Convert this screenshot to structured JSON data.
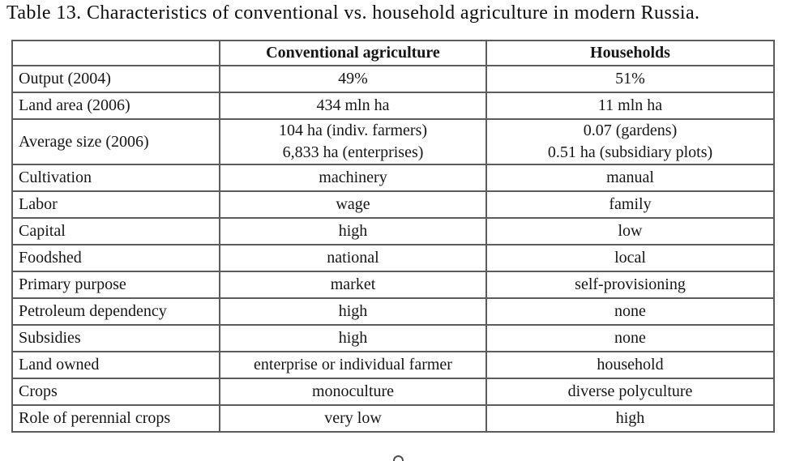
{
  "page": {
    "caption": "Table 13. Characteristics of conventional vs. household agriculture in modern Russia."
  },
  "table": {
    "columns": [
      "",
      "Conventional agriculture",
      "Households"
    ],
    "rows": [
      {
        "label": "Output (2004)",
        "conventional": [
          "49%"
        ],
        "households": [
          "51%"
        ]
      },
      {
        "label": "Land area (2006)",
        "conventional": [
          "434 mln ha"
        ],
        "households": [
          "11 mln ha"
        ]
      },
      {
        "label": "Average size (2006)",
        "conventional": [
          "104 ha (indiv. farmers)",
          "6,833 ha (enterprises)"
        ],
        "households": [
          "0.07 (gardens)",
          "0.51 ha (subsidiary plots)"
        ]
      },
      {
        "label": "Cultivation",
        "conventional": [
          "machinery"
        ],
        "households": [
          "manual"
        ]
      },
      {
        "label": "Labor",
        "conventional": [
          "wage"
        ],
        "households": [
          "family"
        ]
      },
      {
        "label": "Capital",
        "conventional": [
          "high"
        ],
        "households": [
          "low"
        ]
      },
      {
        "label": "Foodshed",
        "conventional": [
          "national"
        ],
        "households": [
          "local"
        ]
      },
      {
        "label": "Primary purpose",
        "conventional": [
          "market"
        ],
        "households": [
          "self-provisioning"
        ]
      },
      {
        "label": "Petroleum dependency",
        "conventional": [
          "high"
        ],
        "households": [
          "none"
        ]
      },
      {
        "label": "Subsidies",
        "conventional": [
          "high"
        ],
        "households": [
          "none"
        ]
      },
      {
        "label": "Land owned",
        "conventional": [
          "enterprise or individual farmer"
        ],
        "households": [
          "household"
        ]
      },
      {
        "label": "Crops",
        "conventional": [
          "monoculture"
        ],
        "households": [
          "diverse polyculture"
        ]
      },
      {
        "label": "Role of perennial crops",
        "conventional": [
          "very low"
        ],
        "households": [
          "high"
        ]
      }
    ]
  },
  "colors": {
    "border": "#5c5c5c",
    "text": "#161616",
    "background": "#ffffff"
  }
}
